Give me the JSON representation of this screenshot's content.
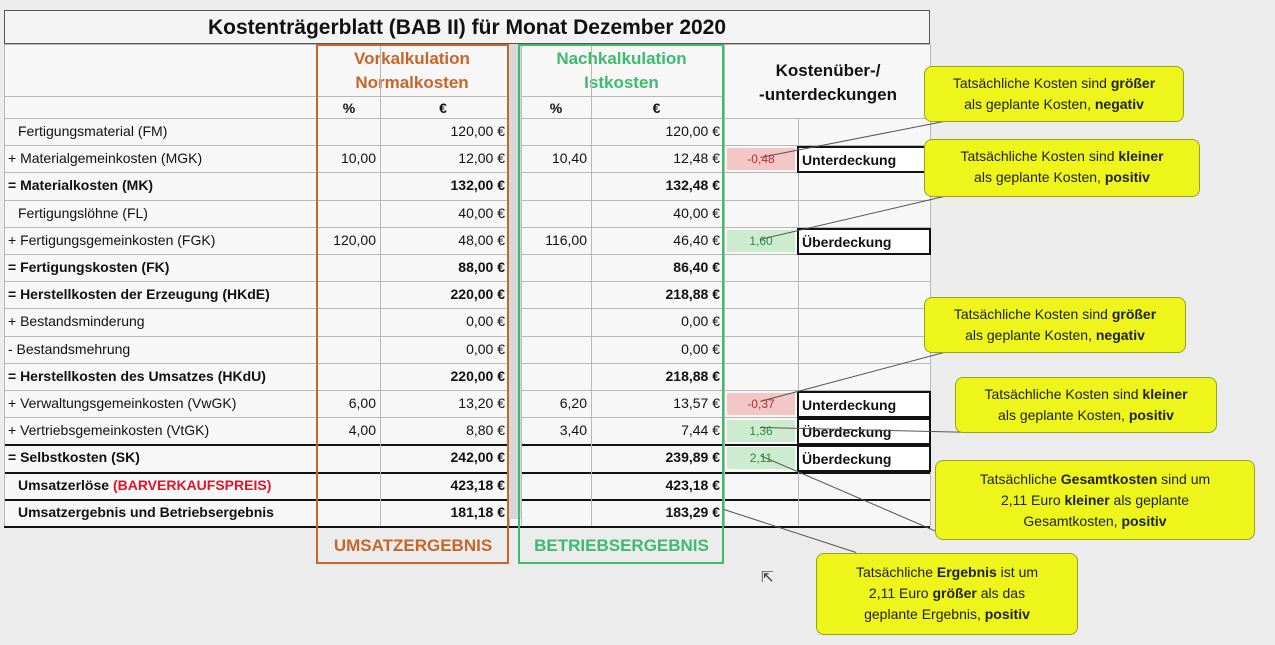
{
  "title": "Kostenträgerblatt (BAB II) für Monat Dezember  2020",
  "headers": {
    "vorkalk_line1": "Vorkalkulation",
    "vorkalk_line2": "Normalkosten",
    "nachkalk_line1": "Nachkalkulation",
    "nachkalk_line2": "Istkosten",
    "diff_line1": "Kostenüber-/",
    "diff_line2": "-unterdeckungen",
    "pct": "%",
    "eur": "€"
  },
  "rows": [
    {
      "label": "Fertigungsmaterial (FM)",
      "bold": false,
      "indent": true,
      "v_pct": "",
      "v_eur": "120,00 €",
      "n_pct": "",
      "n_eur": "120,00 €"
    },
    {
      "label": "+ Materialgemeinkosten (MGK)",
      "bold": false,
      "indent": false,
      "v_pct": "10,00",
      "v_eur": "12,00 €",
      "n_pct": "10,40",
      "n_eur": "12,48 €"
    },
    {
      "label": "= Materialkosten (MK)",
      "bold": true,
      "indent": false,
      "v_pct": "",
      "v_eur": "132,00 €",
      "n_pct": "",
      "n_eur": "132,48 €"
    },
    {
      "label": "Fertigungslöhne (FL)",
      "bold": false,
      "indent": true,
      "v_pct": "",
      "v_eur": "40,00 €",
      "n_pct": "",
      "n_eur": "40,00 €"
    },
    {
      "label": "+ Fertigungsgemeinkosten (FGK)",
      "bold": false,
      "indent": false,
      "v_pct": "120,00",
      "v_eur": "48,00 €",
      "n_pct": "116,00",
      "n_eur": "46,40 €"
    },
    {
      "label": "= Fertigungskosten (FK)",
      "bold": true,
      "indent": false,
      "v_pct": "",
      "v_eur": "88,00 €",
      "n_pct": "",
      "n_eur": "86,40 €"
    },
    {
      "label": "= Herstellkosten der Erzeugung (HKdE)",
      "bold": true,
      "indent": false,
      "v_pct": "",
      "v_eur": "220,00 €",
      "n_pct": "",
      "n_eur": "218,88 €"
    },
    {
      "label": "+ Bestandsminderung",
      "bold": false,
      "indent": false,
      "v_pct": "",
      "v_eur": "0,00 €",
      "n_pct": "",
      "n_eur": "0,00 €"
    },
    {
      "label": "- Bestandsmehrung",
      "bold": false,
      "indent": false,
      "v_pct": "",
      "v_eur": "0,00 €",
      "n_pct": "",
      "n_eur": "0,00 €"
    },
    {
      "label": "= Herstellkosten des Umsatzes (HKdU)",
      "bold": true,
      "indent": false,
      "v_pct": "",
      "v_eur": "220,00 €",
      "n_pct": "",
      "n_eur": "218,88 €"
    },
    {
      "label": "+ Verwaltungsgemeinkosten (VwGK)",
      "bold": false,
      "indent": false,
      "v_pct": "6,00",
      "v_eur": "13,20 €",
      "n_pct": "6,20",
      "n_eur": "13,57 €"
    },
    {
      "label": "+ Vertriebsgemeinkosten (VtGK)",
      "bold": false,
      "indent": false,
      "v_pct": "4,00",
      "v_eur": "8,80 €",
      "n_pct": "3,40",
      "n_eur": "7,44 €"
    },
    {
      "label": "= Selbstkosten (SK)",
      "bold": true,
      "indent": false,
      "v_pct": "",
      "v_eur": "242,00 €",
      "n_pct": "",
      "n_eur": "239,89 €"
    },
    {
      "label": "Umsatzerlöse",
      "label_red": "(BARVERKAUFSPREIS)",
      "bold": true,
      "indent": true,
      "v_pct": "",
      "v_eur": "423,18 €",
      "n_pct": "",
      "n_eur": "423,18 €"
    },
    {
      "label": "Umsatzergebnis und Betriebsergebnis",
      "bold": true,
      "indent": true,
      "v_pct": "",
      "v_eur": "181,18 €",
      "n_pct": "",
      "n_eur": "183,29 €"
    }
  ],
  "differences": [
    {
      "row": 1,
      "value": "-0,48",
      "status": "Unterdeckung",
      "type": "neg"
    },
    {
      "row": 4,
      "value": "1,60",
      "status": "Überdeckung",
      "type": "pos"
    },
    {
      "row": 10,
      "value": "-0,37",
      "status": "Unterdeckung",
      "type": "neg"
    },
    {
      "row": 11,
      "value": "1,36",
      "status": "Überdeckung",
      "type": "pos"
    },
    {
      "row": 12,
      "value": "2,11",
      "status": "Überdeckung",
      "type": "pos"
    }
  ],
  "footer": {
    "umsatzergebnis": "UMSATZERGEBNIS",
    "betriebsergebnis": "BETRIEBSERGEBNIS"
  },
  "callouts": [
    {
      "parts": [
        [
          "Tatsächliche Kosten sind ",
          false
        ],
        [
          "größer",
          true
        ],
        [
          "\n",
          false
        ],
        [
          "als geplante Kosten, ",
          false
        ],
        [
          "negativ",
          true
        ]
      ]
    },
    {
      "parts": [
        [
          "Tatsächliche Kosten sind ",
          false
        ],
        [
          "kleiner",
          true
        ],
        [
          "\n",
          false
        ],
        [
          "als geplante Kosten, ",
          false
        ],
        [
          "positiv",
          true
        ]
      ]
    },
    {
      "parts": [
        [
          "Tatsächliche Kosten sind ",
          false
        ],
        [
          "größer",
          true
        ],
        [
          "\n",
          false
        ],
        [
          "als geplante Kosten, ",
          false
        ],
        [
          "negativ",
          true
        ]
      ]
    },
    {
      "parts": [
        [
          "Tatsächliche Kosten sind ",
          false
        ],
        [
          "kleiner",
          true
        ],
        [
          "\n",
          false
        ],
        [
          "als geplante Kosten, ",
          false
        ],
        [
          "positiv",
          true
        ]
      ]
    },
    {
      "parts": [
        [
          "Tatsächliche ",
          false
        ],
        [
          "Gesamtkosten",
          true
        ],
        [
          " sind um",
          false
        ],
        [
          "\n",
          false
        ],
        [
          "2,11 Euro ",
          false
        ],
        [
          "kleiner",
          true
        ],
        [
          " als geplante",
          false
        ],
        [
          "\n",
          false
        ],
        [
          "Gesamtkosten, ",
          false
        ],
        [
          "positiv",
          true
        ]
      ]
    },
    {
      "parts": [
        [
          "Tatsächliche ",
          false
        ],
        [
          "Ergebnis",
          true
        ],
        [
          " ist um",
          false
        ],
        [
          "\n",
          false
        ],
        [
          "2,11 Euro ",
          false
        ],
        [
          "größer",
          true
        ],
        [
          " als das",
          false
        ],
        [
          "\n",
          false
        ],
        [
          "geplante Ergebnis, ",
          false
        ],
        [
          "positiv",
          true
        ]
      ]
    }
  ],
  "colors": {
    "orange": "#c8652a",
    "green": "#3dbb6f",
    "callout": "#eef51b",
    "neg_bg": "#f4c7c7",
    "pos_bg": "#cdeccf"
  }
}
